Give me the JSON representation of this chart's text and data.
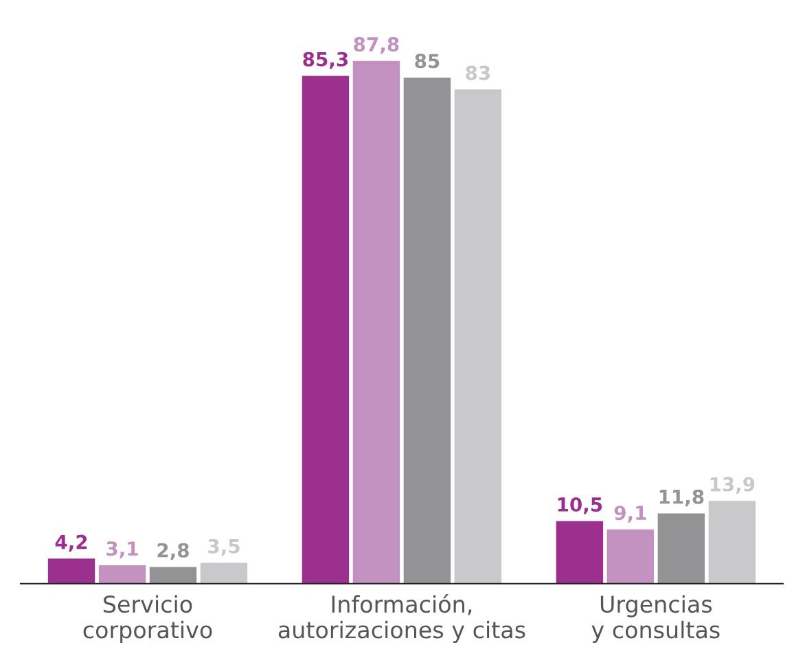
{
  "chart_data": {
    "type": "bar",
    "categories": [
      "Servicio\ncorporativo",
      "Información,\nautorizaciones y citas",
      "Urgencias\ny consultas"
    ],
    "series": [
      {
        "color": "#9b2f8e",
        "values": [
          4.2,
          85.3,
          10.5
        ],
        "value_labels": [
          "4,2",
          "85,3",
          "10,5"
        ]
      },
      {
        "color": "#c291c0",
        "values": [
          3.1,
          87.8,
          9.1
        ],
        "value_labels": [
          "3,1",
          "87,8",
          "9,1"
        ]
      },
      {
        "color": "#939396",
        "values": [
          2.8,
          85,
          11.8
        ],
        "value_labels": [
          "2,8",
          "85",
          "11,8"
        ]
      },
      {
        "color": "#c8c8ca",
        "values": [
          3.5,
          83,
          13.9
        ],
        "value_labels": [
          "3,5",
          "83",
          "13,9"
        ]
      }
    ],
    "data_labels": false
  }
}
